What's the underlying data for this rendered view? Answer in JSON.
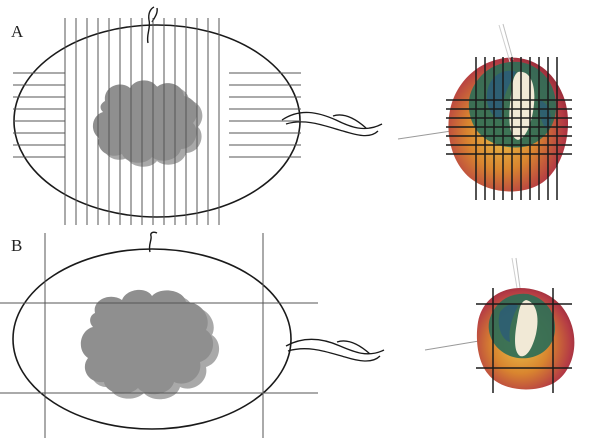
{
  "panels": [
    {
      "label": "A",
      "grid": "dense"
    },
    {
      "label": "B",
      "grid": "sparse"
    }
  ],
  "colors": {
    "line": "#1a1a1a",
    "grid": "#555555",
    "tumor": "#8f8f8f",
    "tumor_shadow": "#a9a9a9",
    "specimen_red": "#b43a45",
    "specimen_orange": "#d9852f",
    "specimen_yellow": "#e9c24a",
    "specimen_green": "#2f6e57",
    "specimen_blue": "#2b5b7a",
    "specimen_pale": "#f1e9d6"
  }
}
